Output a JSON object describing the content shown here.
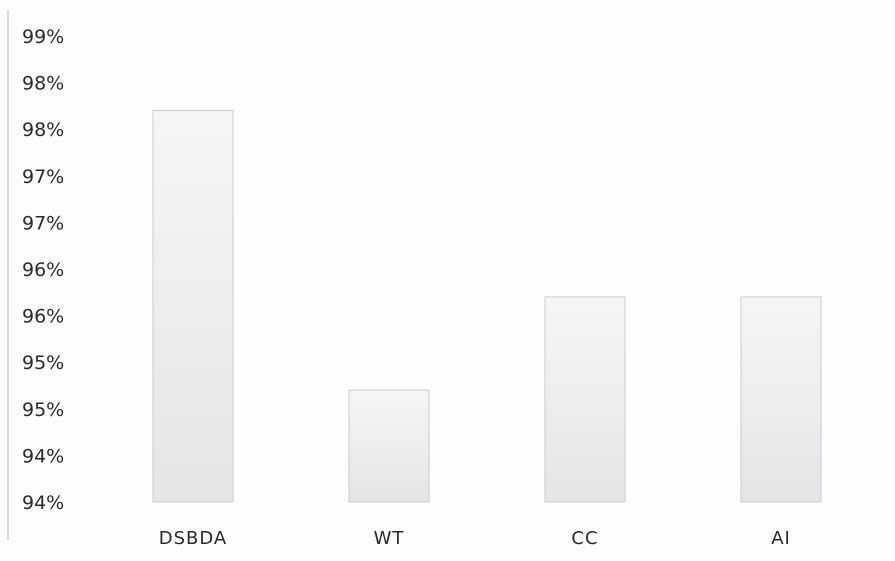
{
  "chart_data": {
    "type": "bar",
    "categories": [
      "DSBDA",
      "WT",
      "CC",
      "AI"
    ],
    "values": [
      98.2,
      95.2,
      96.2,
      96.2
    ],
    "ylim": [
      94.0,
      99.0
    ],
    "y_ticks": [
      94.0,
      94.5,
      95.0,
      95.5,
      96.0,
      96.5,
      97.0,
      97.5,
      98.0,
      98.5,
      99.0
    ],
    "y_tick_labels": [
      "94%",
      "94%",
      "95%",
      "95%",
      "96%",
      "96%",
      "97%",
      "97%",
      "98%",
      "98%",
      "99%"
    ],
    "grid": false,
    "bar_fill": "#e6e8ea",
    "bar_edge": "#c9cccf"
  }
}
